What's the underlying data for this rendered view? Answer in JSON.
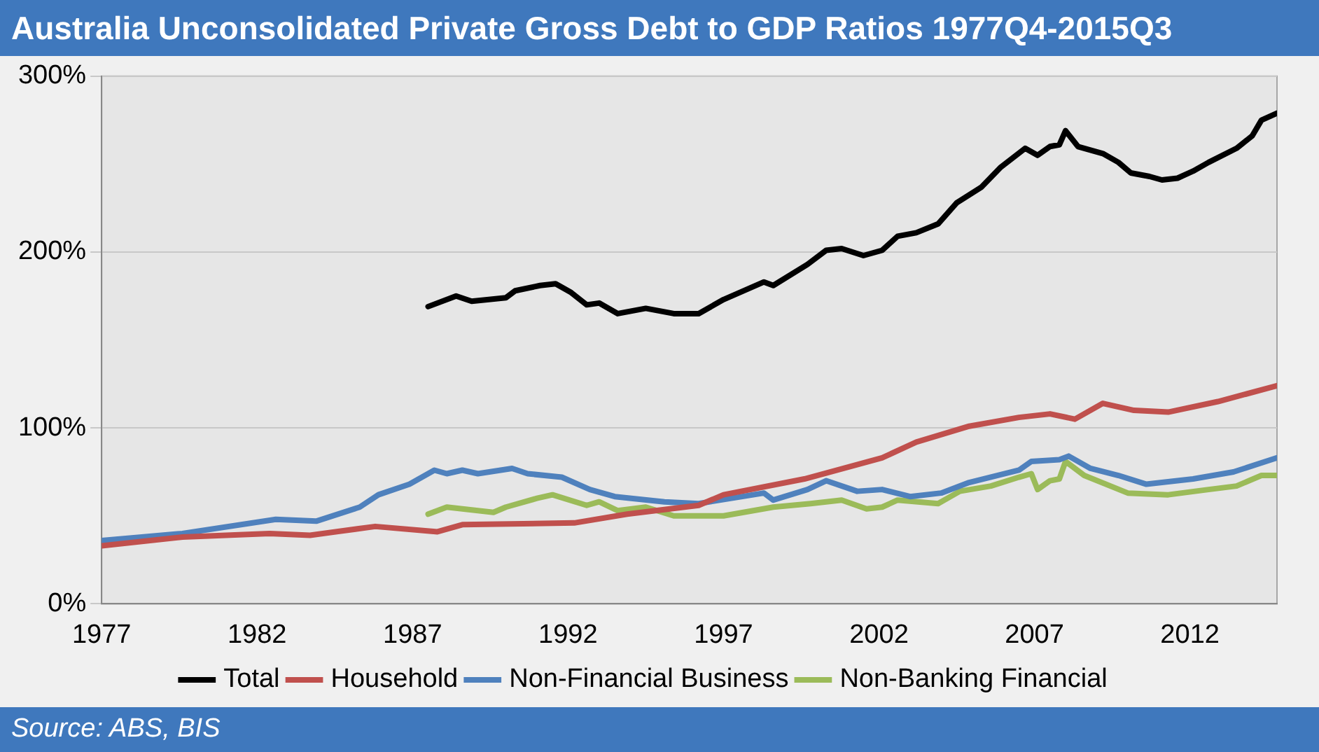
{
  "chart_data": {
    "type": "line",
    "title": "Australia Unconsolidated Private Gross Debt to GDP Ratios 1977Q4-2015Q3",
    "annotations": [
      "Source: ABS, BIS"
    ],
    "xlim": [
      1977,
      2014.8
    ],
    "xticks": [
      1977,
      1982,
      1987,
      1992,
      1997,
      2002,
      2007,
      2012
    ],
    "ylim": [
      0,
      300
    ],
    "yticks": [
      {
        "value": 0,
        "label": "0%"
      },
      {
        "value": 100,
        "label": "100%"
      },
      {
        "value": 200,
        "label": "200%"
      },
      {
        "value": 300,
        "label": "300%"
      }
    ],
    "grid": "y",
    "legend": "bottom",
    "marker": "none",
    "line_style": "solid",
    "series": [
      {
        "name": "Total",
        "color": "#000000",
        "x": [
          1987.5,
          1988.4,
          1988.9,
          1990.0,
          1990.3,
          1991.1,
          1991.6,
          1992.1,
          1992.6,
          1993.0,
          1993.6,
          1994.5,
          1995.4,
          1996.2,
          1997.0,
          1998.3,
          1998.6,
          1999.7,
          2000.3,
          2000.8,
          2001.5,
          2002.1,
          2002.6,
          2003.2,
          2003.9,
          2004.5,
          2005.3,
          2005.9,
          2006.7,
          2007.1,
          2007.5,
          2007.8,
          2008.0,
          2008.4,
          2009.2,
          2009.7,
          2010.1,
          2010.7,
          2011.1,
          2011.6,
          2012.1,
          2012.6,
          2013.5,
          2014.0,
          2014.3,
          2014.8
        ],
        "values": [
          169,
          175,
          172,
          174,
          178,
          181,
          182,
          177,
          170,
          171,
          165,
          168,
          165,
          165,
          173,
          183,
          181,
          193,
          201,
          202,
          198,
          201,
          209,
          211,
          216,
          228,
          237,
          248,
          259,
          255,
          260,
          261,
          269,
          260,
          256,
          251,
          245,
          243,
          241,
          242,
          246,
          251,
          259,
          266,
          275,
          279
        ]
      },
      {
        "name": "Household",
        "color": "#c0504d",
        "x": [
          1977.0,
          1979.6,
          1982.4,
          1983.7,
          1985.8,
          1987.8,
          1988.6,
          1992.2,
          1993.9,
          1996.2,
          1997.0,
          1999.6,
          2002.1,
          2003.2,
          2004.9,
          2006.5,
          2007.5,
          2008.3,
          2009.2,
          2010.2,
          2011.3,
          2012.9,
          2014.8
        ],
        "values": [
          33,
          38,
          40,
          39,
          44,
          41,
          45,
          46,
          51,
          56,
          62,
          71,
          83,
          92,
          101,
          106,
          108,
          105,
          114,
          110,
          109,
          115,
          124
        ]
      },
      {
        "name": "Non-Financial Business",
        "color": "#4f81bd",
        "x": [
          1977.0,
          1979.6,
          1982.6,
          1983.9,
          1985.3,
          1985.9,
          1986.9,
          1987.7,
          1988.1,
          1988.6,
          1989.1,
          1990.2,
          1990.7,
          1991.8,
          1992.7,
          1993.5,
          1995.1,
          1996.2,
          1998.3,
          1998.6,
          1999.7,
          2000.3,
          2001.3,
          2002.1,
          2003.0,
          2004.0,
          2004.9,
          2006.5,
          2006.9,
          2007.8,
          2008.1,
          2008.8,
          2009.7,
          2010.6,
          2012.1,
          2013.4,
          2014.8
        ],
        "values": [
          36,
          40,
          48,
          47,
          55,
          62,
          68,
          76,
          74,
          76,
          74,
          77,
          74,
          72,
          65,
          61,
          58,
          57,
          63,
          59,
          65,
          70,
          64,
          65,
          61,
          63,
          69,
          76,
          81,
          82,
          84,
          77,
          73,
          68,
          71,
          75,
          83
        ]
      },
      {
        "name": "Non-Banking Financial",
        "color": "#9bbb59",
        "x": [
          1987.5,
          1988.1,
          1989.6,
          1990.0,
          1991.0,
          1991.5,
          1992.6,
          1993.0,
          1993.6,
          1994.5,
          1995.4,
          1996.2,
          1997.0,
          1998.6,
          1999.8,
          2000.8,
          2001.6,
          2002.1,
          2002.6,
          2003.9,
          2004.6,
          2005.6,
          2006.5,
          2006.9,
          2007.1,
          2007.5,
          2007.8,
          2008.0,
          2008.6,
          2010.0,
          2011.3,
          2012.6,
          2013.5,
          2014.3,
          2014.8
        ],
        "values": [
          51,
          55,
          52,
          55,
          60,
          62,
          56,
          58,
          53,
          55,
          50,
          50,
          50,
          55,
          57,
          59,
          54,
          55,
          59,
          57,
          64,
          67,
          72,
          74,
          65,
          70,
          71,
          81,
          73,
          63,
          62,
          65,
          67,
          73,
          73
        ]
      }
    ]
  }
}
